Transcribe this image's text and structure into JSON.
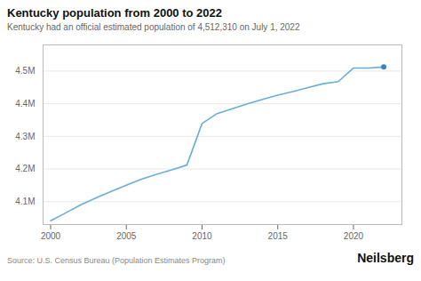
{
  "chart_data": {
    "type": "line",
    "title": "Kentucky population from 2000 to 2022",
    "subtitle": "Kentucky had an official estimated population of 4,512,310 on July 1, 2022",
    "source": "Source: U.S. Census Bureau (Population Estimates Program)",
    "brand": "Neilsberg",
    "x": [
      2000,
      2001,
      2002,
      2003,
      2004,
      2005,
      2006,
      2007,
      2008,
      2009,
      2010,
      2011,
      2012,
      2013,
      2014,
      2015,
      2016,
      2017,
      2018,
      2019,
      2020,
      2021,
      2022
    ],
    "series": [
      {
        "type": "line",
        "color": "#6aaed6",
        "values": [
          4041769,
          4065827,
          4090404,
          4111947,
          4131285,
          4150432,
          4168956,
          4183841,
          4197169,
          4212077,
          4339367,
          4369821,
          4384799,
          4399583,
          4413057,
          4425976,
          4436974,
          4449357,
          4461153,
          4467673,
          4509394,
          4509098,
          4512310
        ]
      },
      {
        "type": "scatter",
        "color": "#3b82c4",
        "values": [
          null,
          null,
          null,
          null,
          null,
          null,
          null,
          null,
          null,
          null,
          null,
          null,
          null,
          null,
          null,
          null,
          null,
          null,
          null,
          null,
          null,
          null,
          4512310
        ]
      }
    ],
    "xlim": [
      1999.5,
      2023.2
    ],
    "xticks": [
      2000,
      2005,
      2010,
      2015,
      2020
    ],
    "ylim": [
      4030000,
      4580000
    ],
    "yticks": [
      {
        "value": 4100000,
        "label": "4.1M"
      },
      {
        "value": 4200000,
        "label": "4.2M"
      },
      {
        "value": 4300000,
        "label": "4.3M"
      },
      {
        "value": 4400000,
        "label": "4.4M"
      },
      {
        "value": 4500000,
        "label": "4.5M"
      }
    ],
    "grid": "y"
  }
}
